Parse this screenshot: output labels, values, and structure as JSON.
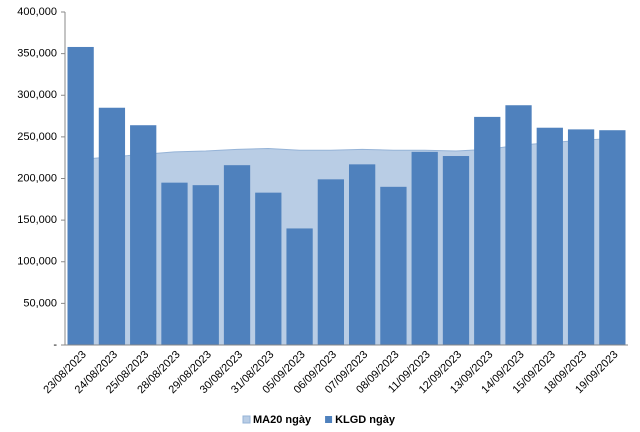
{
  "chart_data": {
    "type": "bar_area",
    "categories": [
      "23/08/2023",
      "24/08/2023",
      "25/08/2023",
      "28/08/2023",
      "29/08/2023",
      "30/08/2023",
      "31/08/2023",
      "05/09/2023",
      "06/09/2023",
      "07/09/2023",
      "08/09/2023",
      "11/09/2023",
      "12/09/2023",
      "13/09/2023",
      "14/09/2023",
      "15/09/2023",
      "18/09/2023",
      "19/09/2023"
    ],
    "series": [
      {
        "name": "MA20 ngày",
        "type": "area",
        "color": "#b9cde5",
        "values": [
          223000,
          226000,
          229000,
          232000,
          233000,
          235000,
          236000,
          234000,
          234000,
          235000,
          234000,
          234000,
          233000,
          235000,
          240000,
          243000,
          246000,
          248000
        ]
      },
      {
        "name": "KLGD ngày",
        "type": "bar",
        "color": "#4f81bd",
        "values": [
          358000,
          285000,
          264000,
          195000,
          192000,
          216000,
          183000,
          140000,
          199000,
          217000,
          190000,
          232000,
          227000,
          274000,
          288000,
          261000,
          259000,
          258000
        ]
      }
    ],
    "ylim": [
      0,
      400000
    ],
    "yticks": [
      {
        "value": 0,
        "label": "-"
      },
      {
        "value": 50000,
        "label": "50,000"
      },
      {
        "value": 100000,
        "label": "100,000"
      },
      {
        "value": 150000,
        "label": "150,000"
      },
      {
        "value": 200000,
        "label": "200,000"
      },
      {
        "value": 250000,
        "label": "250,000"
      },
      {
        "value": 300000,
        "label": "300,000"
      },
      {
        "value": 350000,
        "label": "350,000"
      },
      {
        "value": 400000,
        "label": "400,000"
      }
    ],
    "legend": "bottom"
  }
}
